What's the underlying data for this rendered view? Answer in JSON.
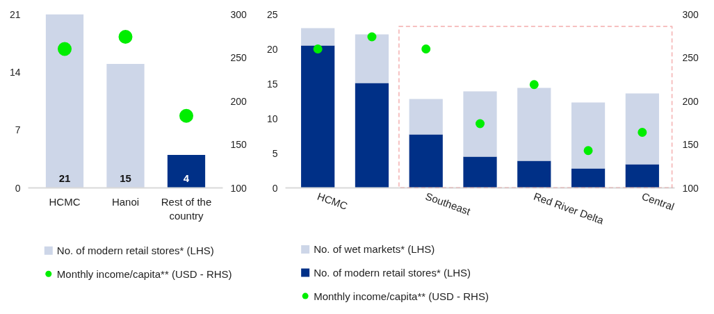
{
  "chart_data": [
    {
      "type": "bar",
      "categories": [
        "HCMC",
        "Hanoi",
        "Rest of the country"
      ],
      "ylim": [
        0,
        21
      ],
      "yticks": [
        0,
        7,
        14,
        21
      ],
      "y2lim": [
        100,
        300
      ],
      "y2ticks": [
        100,
        150,
        200,
        250,
        300
      ],
      "legend": "bottom",
      "series": [
        {
          "name": "No. of modern retail stores* (LHS)",
          "color": "#cdd6e8",
          "colors": [
            "#cdd6e8",
            "#cdd6e8",
            "#003087"
          ],
          "values": [
            21,
            15,
            4
          ],
          "value_labels": [
            "21",
            "15",
            "4"
          ]
        },
        {
          "name": "Monthly income/capita** (USD - RHS)",
          "type": "scatter",
          "axis": "y2",
          "color": "#00ee00",
          "values": [
            260,
            274,
            183
          ]
        }
      ]
    },
    {
      "type": "bar",
      "stacked": true,
      "categories": [
        "HCMC",
        null,
        "Southeast",
        null,
        "Red River Delta",
        null,
        "Central"
      ],
      "ylim": [
        0,
        25
      ],
      "yticks": [
        0,
        5,
        10,
        15,
        20,
        25
      ],
      "y2lim": [
        100,
        300
      ],
      "y2ticks": [
        100,
        150,
        200,
        250,
        300
      ],
      "legend": "bottom",
      "series": [
        {
          "name": "No. of modern retail stores* (LHS)",
          "color": "#003087",
          "values": [
            20.5,
            15.1,
            7.7,
            4.5,
            3.9,
            2.8,
            3.4
          ]
        },
        {
          "name": "No. of wet markets* (LHS)",
          "color": "#cdd6e8",
          "values": [
            2.5,
            7.0,
            5.1,
            9.4,
            10.5,
            9.5,
            10.2
          ]
        },
        {
          "name": "Monthly income/capita** (USD - RHS)",
          "type": "scatter",
          "axis": "y2",
          "color": "#00ee00",
          "values": [
            260,
            274,
            260,
            174,
            219,
            143,
            164
          ]
        }
      ]
    }
  ]
}
